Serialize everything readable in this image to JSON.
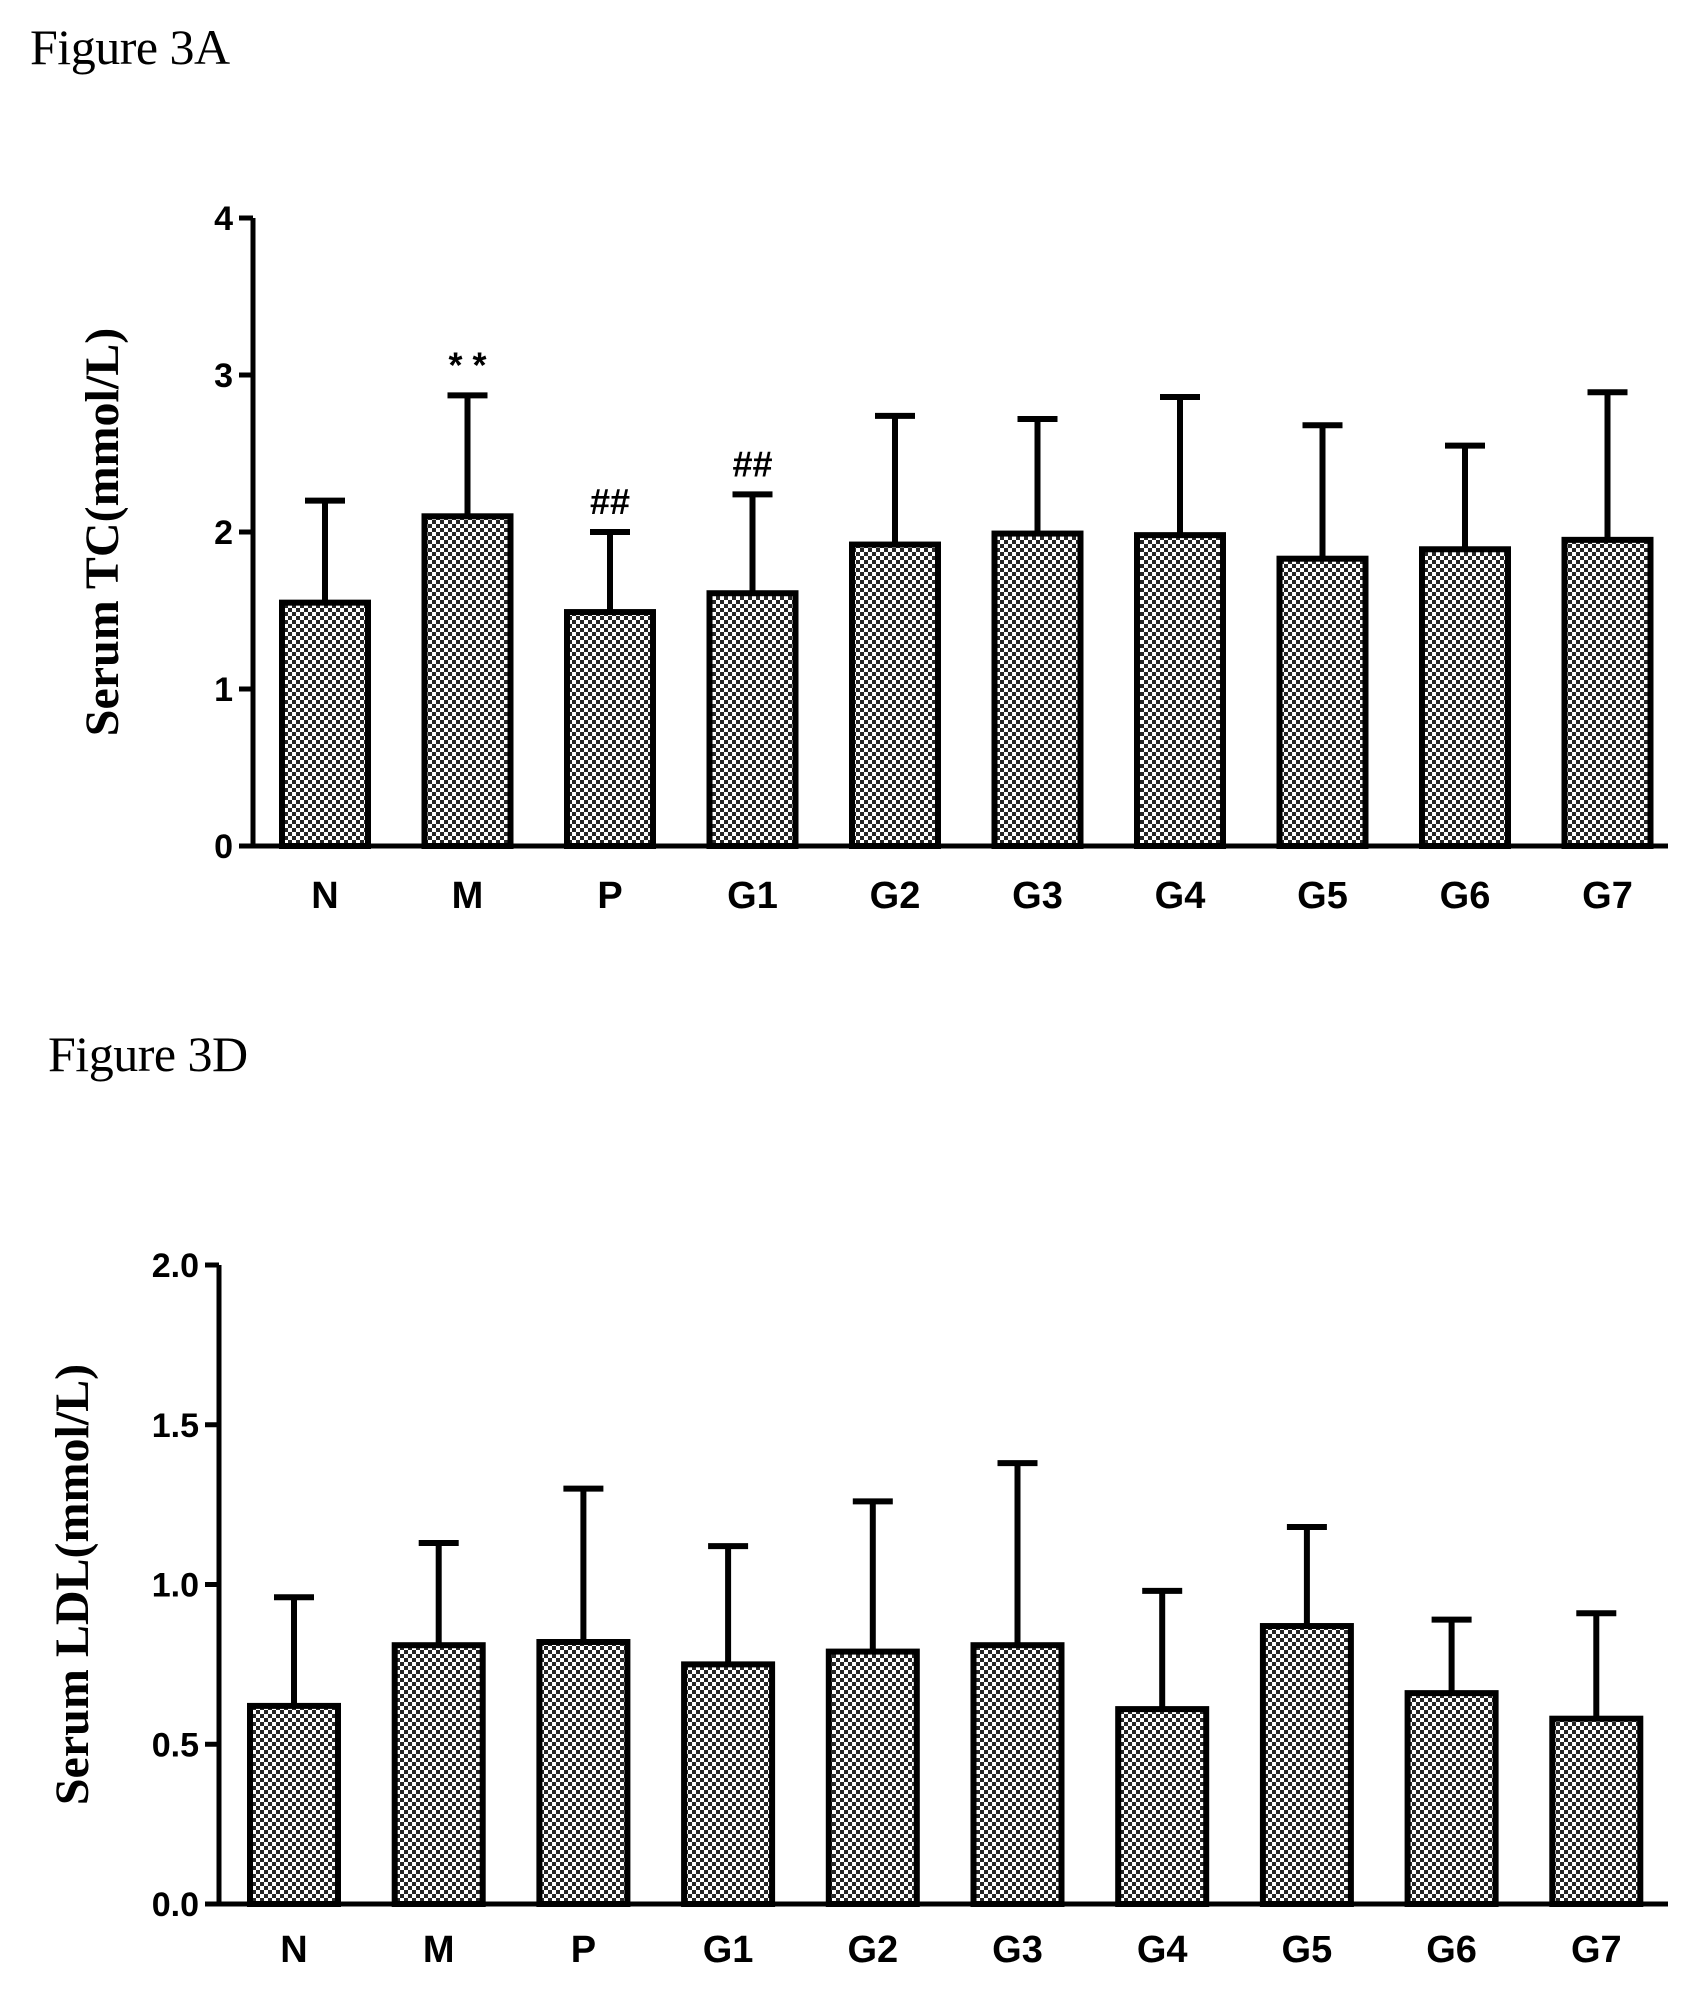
{
  "chart_data": [
    {
      "type": "bar",
      "title": "Figure 3A",
      "ylabel": "Serum TC(mmol/L)",
      "xlabel": "",
      "categories": [
        "N",
        "M",
        "P",
        "G1",
        "G2",
        "G3",
        "G4",
        "G5",
        "G6",
        "G7"
      ],
      "values": [
        1.55,
        2.1,
        1.49,
        1.61,
        1.92,
        1.99,
        1.98,
        1.83,
        1.89,
        1.95
      ],
      "error_upper": [
        2.2,
        2.87,
        2.0,
        2.24,
        2.74,
        2.72,
        2.86,
        2.68,
        2.55,
        2.89
      ],
      "annotations": [
        "",
        "* *",
        "##",
        "##",
        "",
        "",
        "",
        "",
        "",
        ""
      ],
      "ylim": [
        0,
        4
      ],
      "yticks": [
        0,
        1,
        2,
        3,
        4
      ],
      "ytick_labels": [
        "0",
        "1",
        "2",
        "3",
        "4"
      ],
      "grid": false,
      "bar_pattern": "checkered"
    },
    {
      "type": "bar",
      "title": "Figure 3D",
      "ylabel": "Serum LDL(mmol/L)",
      "xlabel": "",
      "categories": [
        "N",
        "M",
        "P",
        "G1",
        "G2",
        "G3",
        "G4",
        "G5",
        "G6",
        "G7"
      ],
      "values": [
        0.62,
        0.81,
        0.82,
        0.75,
        0.79,
        0.81,
        0.61,
        0.87,
        0.66,
        0.58
      ],
      "error_upper": [
        0.96,
        1.13,
        1.3,
        1.12,
        1.26,
        1.38,
        0.98,
        1.18,
        0.89,
        0.91
      ],
      "annotations": [
        "",
        "",
        "",
        "",
        "",
        "",
        "",
        "",
        "",
        ""
      ],
      "ylim": [
        0,
        2
      ],
      "yticks": [
        0,
        0.5,
        1,
        1.5,
        2
      ],
      "ytick_labels": [
        "0.0",
        "0.5",
        "1.0",
        "1.5",
        "2.0"
      ],
      "grid": false,
      "bar_pattern": "checkered"
    }
  ]
}
